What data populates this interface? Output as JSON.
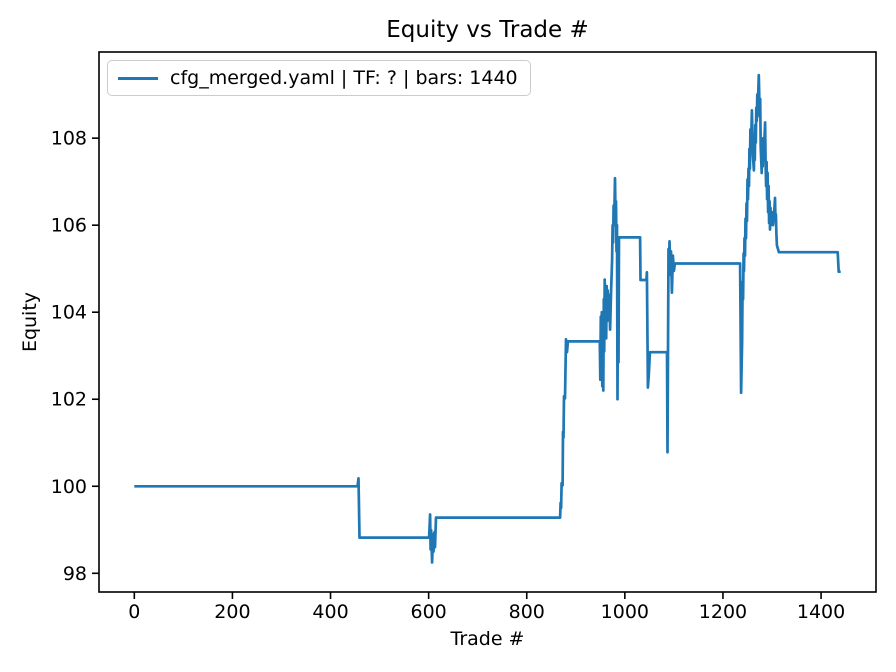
{
  "chart_data": {
    "type": "line",
    "title": "Equity vs Trade #",
    "xlabel": "Trade #",
    "ylabel": "Equity",
    "grid": false,
    "legend_position": "upper left",
    "x_ticks": [
      0,
      200,
      400,
      600,
      800,
      1000,
      1200,
      1400
    ],
    "y_ticks": [
      98,
      100,
      102,
      104,
      106,
      108
    ],
    "xlim": [
      -72,
      1512
    ],
    "ylim": [
      97.57,
      109.98
    ],
    "axis_color": "#000000",
    "series": [
      {
        "name": "cfg_merged.yaml | TF: ? | bars: 1440",
        "color": "#1f77b4",
        "points": [
          [
            0,
            100
          ],
          [
            455,
            100
          ],
          [
            457,
            100.18
          ],
          [
            459,
            98.82
          ],
          [
            601,
            98.82
          ],
          [
            603,
            99.35
          ],
          [
            604,
            98.55
          ],
          [
            605,
            99.0
          ],
          [
            607,
            98.25
          ],
          [
            609,
            98.9
          ],
          [
            610,
            98.5
          ],
          [
            612,
            98.95
          ],
          [
            613,
            98.6
          ],
          [
            615,
            99.28
          ],
          [
            868,
            99.28
          ],
          [
            869,
            99.62
          ],
          [
            870,
            99.5
          ],
          [
            871,
            100.07
          ],
          [
            873,
            100.02
          ],
          [
            874,
            101.25
          ],
          [
            875,
            101.12
          ],
          [
            876,
            102.07
          ],
          [
            878,
            102.02
          ],
          [
            880,
            103.38
          ],
          [
            882,
            103.08
          ],
          [
            884,
            103.33
          ],
          [
            949,
            103.33
          ],
          [
            950,
            102.45
          ],
          [
            951,
            103.9
          ],
          [
            952,
            102.6
          ],
          [
            953,
            104.0
          ],
          [
            954,
            102.3
          ],
          [
            955,
            103.85
          ],
          [
            956,
            102.2
          ],
          [
            957,
            104.3
          ],
          [
            958,
            103.1
          ],
          [
            959,
            104.75
          ],
          [
            960,
            103.5
          ],
          [
            961,
            104.55
          ],
          [
            962,
            103.4
          ],
          [
            963,
            104.6
          ],
          [
            964,
            103.8
          ],
          [
            965,
            104.5
          ],
          [
            966,
            104.0
          ],
          [
            968,
            104.4
          ],
          [
            970,
            103.6
          ],
          [
            972,
            104.5
          ],
          [
            974,
            105.2
          ],
          [
            975,
            106.0
          ],
          [
            976,
            105.6
          ],
          [
            977,
            106.45
          ],
          [
            978,
            106.0
          ],
          [
            980,
            107.08
          ],
          [
            981,
            106.2
          ],
          [
            982,
            106.55
          ],
          [
            983,
            105.4
          ],
          [
            984,
            106.0
          ],
          [
            985,
            102.0
          ],
          [
            986,
            104.6
          ],
          [
            987,
            102.85
          ],
          [
            988,
            105.72
          ],
          [
            1031,
            105.72
          ],
          [
            1032,
            104.74
          ],
          [
            1044,
            104.74
          ],
          [
            1045,
            104.92
          ],
          [
            1047,
            102.27
          ],
          [
            1049,
            102.6
          ],
          [
            1051,
            103.08
          ],
          [
            1086,
            103.08
          ],
          [
            1087,
            100.78
          ],
          [
            1089,
            105.45
          ],
          [
            1090,
            104.85
          ],
          [
            1091,
            105.63
          ],
          [
            1093,
            104.9
          ],
          [
            1094,
            105.4
          ],
          [
            1096,
            104.45
          ],
          [
            1098,
            105.3
          ],
          [
            1100,
            104.95
          ],
          [
            1102,
            105.12
          ],
          [
            1235,
            105.12
          ],
          [
            1237,
            102.15
          ],
          [
            1239,
            103.3
          ],
          [
            1240,
            104.7
          ],
          [
            1241,
            104.3
          ],
          [
            1242,
            105.35
          ],
          [
            1243,
            104.95
          ],
          [
            1244,
            105.7
          ],
          [
            1245,
            105.3
          ],
          [
            1246,
            106.15
          ],
          [
            1247,
            105.7
          ],
          [
            1248,
            106.5
          ],
          [
            1249,
            106.1
          ],
          [
            1250,
            107.05
          ],
          [
            1251,
            106.6
          ],
          [
            1252,
            107.3
          ],
          [
            1253,
            106.9
          ],
          [
            1254,
            107.75
          ],
          [
            1255,
            107.3
          ],
          [
            1256,
            108.2
          ],
          [
            1257,
            107.7
          ],
          [
            1259,
            108.64
          ],
          [
            1261,
            107.6
          ],
          [
            1263,
            107.26
          ],
          [
            1264,
            107.9
          ],
          [
            1265,
            107.5
          ],
          [
            1266,
            108.3
          ],
          [
            1267,
            107.9
          ],
          [
            1268,
            108.7
          ],
          [
            1269,
            108.4
          ],
          [
            1270,
            109.0
          ],
          [
            1271,
            108.7
          ],
          [
            1273,
            109.45
          ],
          [
            1275,
            108.5
          ],
          [
            1276,
            108.9
          ],
          [
            1277,
            107.8
          ],
          [
            1278,
            107.5
          ],
          [
            1279,
            107.2
          ],
          [
            1280,
            107.9
          ],
          [
            1281,
            107.35
          ],
          [
            1282,
            108.0
          ],
          [
            1283,
            107.5
          ],
          [
            1286,
            108.36
          ],
          [
            1287,
            107.4
          ],
          [
            1288,
            106.9
          ],
          [
            1289,
            107.45
          ],
          [
            1290,
            106.6
          ],
          [
            1291,
            107.2
          ],
          [
            1292,
            106.3
          ],
          [
            1293,
            106.9
          ],
          [
            1294,
            106.05
          ],
          [
            1295,
            106.55
          ],
          [
            1296,
            105.9
          ],
          [
            1297,
            106.4
          ],
          [
            1298,
            106.0
          ],
          [
            1300,
            106.3
          ],
          [
            1302,
            106.0
          ],
          [
            1304,
            106.2
          ],
          [
            1306,
            106.63
          ],
          [
            1307,
            106.2
          ],
          [
            1308,
            106.25
          ],
          [
            1309,
            105.8
          ],
          [
            1310,
            105.54
          ],
          [
            1314,
            105.38
          ],
          [
            1434,
            105.38
          ],
          [
            1436,
            104.93
          ],
          [
            1440,
            104.93
          ]
        ]
      }
    ]
  }
}
